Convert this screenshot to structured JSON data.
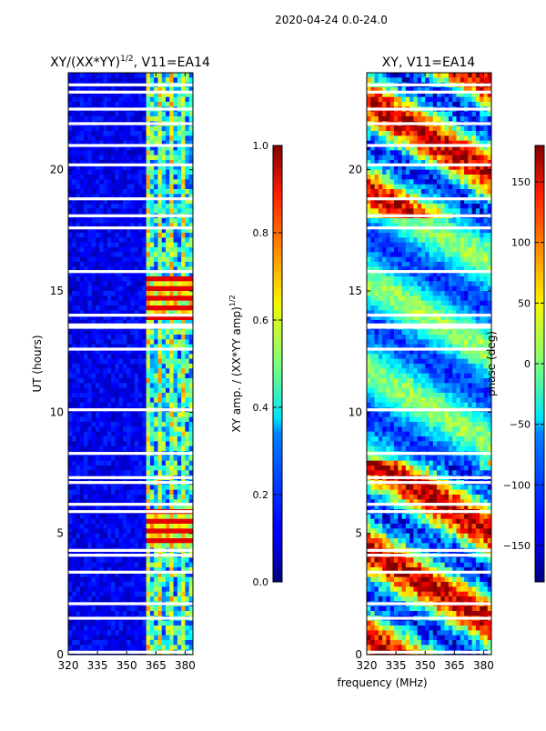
{
  "figure": {
    "suptitle": "2020-04-24 0.0-24.0",
    "shared_xlabel": "frequency (MHz)"
  },
  "chart_data": [
    {
      "type": "heatmap",
      "title": "XY/(XX*YY)^1/2, V11=EA14",
      "title_main": "XY/(XX*YY)",
      "title_exp": "1/2",
      "title_tail": ", V11=EA14",
      "xlabel": "frequency (MHz)",
      "ylabel": "UT (hours)",
      "xlim": [
        320,
        384
      ],
      "ylim": [
        0,
        24
      ],
      "xticks": [
        "320",
        "335",
        "350",
        "365",
        "380"
      ],
      "xtick_values": [
        320,
        335,
        350,
        365,
        380
      ],
      "yticks": [
        "0",
        "5",
        "10",
        "15",
        "20"
      ],
      "ytick_values": [
        0,
        5,
        10,
        15,
        20
      ],
      "colorbar": {
        "label": "XY amp. / (XX*YY amp)^1/2",
        "label_main": "XY amp. / (XX*YY amp)",
        "label_exp": "1/2",
        "range": [
          0,
          1
        ],
        "ticks": [
          "0.0",
          "0.2",
          "0.4",
          "0.6",
          "0.8",
          "1.0"
        ],
        "tick_values": [
          0,
          0.2,
          0.4,
          0.6,
          0.8,
          1.0
        ]
      },
      "gaps_hours": [
        0.1,
        1.5,
        2.1,
        3.4,
        4.1,
        4.3,
        5.9,
        6.2,
        7.1,
        7.3,
        8.3,
        10.1,
        12.6,
        13.5,
        13.6,
        14.0,
        15.8,
        17.6,
        18.1,
        18.8,
        20.2,
        21.0,
        21.9,
        22.5,
        23.2,
        23.5
      ],
      "gap_width_hours": 0.12,
      "features": [
        {
          "description": "strong band",
          "x_range": [
            360,
            384
          ],
          "y_range": [
            4.5,
            5.9
          ],
          "level": 0.9
        },
        {
          "description": "strong band",
          "x_range": [
            360,
            384
          ],
          "y_range": [
            13.9,
            15.6
          ],
          "level": 0.9
        }
      ]
    },
    {
      "type": "heatmap",
      "title": "XY, V11=EA14",
      "xlabel": "frequency (MHz)",
      "ylabel": "",
      "xlim": [
        320,
        384
      ],
      "ylim": [
        0,
        24
      ],
      "xticks": [
        "320",
        "335",
        "350",
        "365",
        "380"
      ],
      "xtick_values": [
        320,
        335,
        350,
        365,
        380
      ],
      "yticks": [
        "0",
        "5",
        "10",
        "15",
        "20"
      ],
      "ytick_values": [
        0,
        5,
        10,
        15,
        20
      ],
      "colorbar": {
        "label": "phase (deg)",
        "range": [
          -180,
          180
        ],
        "ticks": [
          "−150",
          "−100",
          "−50",
          "0",
          "50",
          "100",
          "150"
        ],
        "tick_values": [
          -150,
          -100,
          -50,
          0,
          50,
          100,
          150
        ]
      },
      "gaps_hours": [
        0.1,
        1.5,
        2.1,
        3.4,
        4.1,
        4.3,
        5.9,
        6.2,
        7.1,
        7.3,
        8.3,
        10.1,
        12.6,
        13.5,
        13.6,
        14.0,
        15.8,
        17.6,
        18.1,
        18.8,
        20.2,
        21.0,
        21.9,
        22.5,
        23.2,
        23.5
      ],
      "gap_width_hours": 0.12
    }
  ]
}
